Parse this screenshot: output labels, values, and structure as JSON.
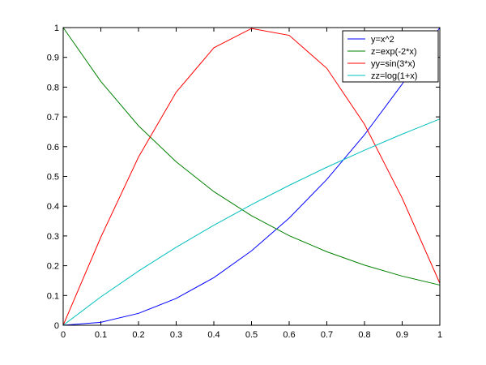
{
  "chart_data": {
    "type": "line",
    "title": "",
    "xlabel": "",
    "ylabel": "",
    "xlim": [
      0,
      1
    ],
    "ylim": [
      0,
      1
    ],
    "grid": false,
    "legend_position": "top-right",
    "x_ticks": [
      "0",
      "0.1",
      "0.2",
      "0.3",
      "0.4",
      "0.5",
      "0.6",
      "0.7",
      "0.8",
      "0.9",
      "1"
    ],
    "y_ticks": [
      "0",
      "0.1",
      "0.2",
      "0.3",
      "0.4",
      "0.5",
      "0.6",
      "0.7",
      "0.8",
      "0.9",
      "1"
    ],
    "x": [
      0,
      0.1,
      0.2,
      0.3,
      0.4,
      0.5,
      0.6,
      0.7,
      0.8,
      0.9,
      1.0
    ],
    "series": [
      {
        "name": "y=x^2",
        "color": "#0000ff",
        "values": [
          0,
          0.01,
          0.04,
          0.09,
          0.16,
          0.25,
          0.36,
          0.49,
          0.64,
          0.81,
          1.0
        ]
      },
      {
        "name": "z=exp(-2*x)",
        "color": "#008000",
        "values": [
          1.0,
          0.819,
          0.67,
          0.549,
          0.449,
          0.368,
          0.301,
          0.247,
          0.202,
          0.165,
          0.135
        ]
      },
      {
        "name": "yy=sin(3*x)",
        "color": "#ff0000",
        "values": [
          0,
          0.296,
          0.565,
          0.783,
          0.932,
          0.997,
          0.974,
          0.863,
          0.675,
          0.427,
          0.141
        ]
      },
      {
        "name": "zz=log(1+x)",
        "color": "#00bfbf",
        "values": [
          0,
          0.0953,
          0.182,
          0.262,
          0.336,
          0.405,
          0.47,
          0.531,
          0.588,
          0.642,
          0.693
        ]
      }
    ]
  }
}
